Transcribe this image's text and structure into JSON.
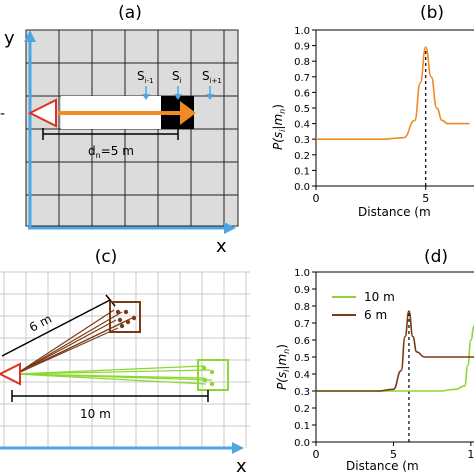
{
  "panels": {
    "a": {
      "label": "(a)",
      "axis_y": "y",
      "axis_x": "x",
      "cells": [
        "S",
        "S",
        "S"
      ],
      "cell_subs": [
        "i-1",
        "i",
        "i+1"
      ],
      "distance_label": "d",
      "distance_sub": "n",
      "distance_value": "=5  m",
      "side_mark": "-",
      "colors": {
        "grid_fill": "#dcdcdc",
        "axis": "#4da6e0",
        "arrow": "#f08a24",
        "start": "#e03020",
        "cell": "#000000"
      }
    },
    "b": {
      "label": "(b)",
      "xlabel": "Distance (m",
      "ylabel": {
        "p": "P(s",
        "i": "i",
        "sep": "|m",
        "n": "n",
        "close": ")"
      }
    },
    "c": {
      "label": "(c)",
      "axis_x": "x",
      "dist_6": "6  m",
      "dist_10": "10  m",
      "colors": {
        "brown": "#7a3a16",
        "green": "#8ad830",
        "start": "#e03020",
        "axis": "#4da6e0",
        "grid": "#c8c8c8"
      }
    },
    "d": {
      "label": "(d)",
      "xlabel": "Distance (m",
      "ylabel": {
        "p": "P(s",
        "i": "i",
        "sep": "|m",
        "n": "n",
        "close": ")"
      },
      "legend": [
        "10 m",
        "6 m"
      ]
    }
  },
  "chart_data": [
    {
      "type": "line",
      "panel": "b",
      "x": [
        0,
        1,
        2,
        3,
        4,
        4.5,
        4.75,
        5,
        5.25,
        5.5,
        5.75,
        6,
        6.5,
        7
      ],
      "series": [
        {
          "values": [
            0.3,
            0.3,
            0.3,
            0.3,
            0.31,
            0.42,
            0.66,
            0.89,
            0.7,
            0.5,
            0.42,
            0.4,
            0.4,
            0.4
          ],
          "color": "#f08a24"
        }
      ],
      "ylim": [
        0,
        1.0
      ],
      "yticks": [
        "0.0",
        "0.1",
        "0.2",
        "0.3",
        "0.4",
        "0.5",
        "0.6",
        "0.7",
        "0.8",
        "0.9",
        "1.0"
      ],
      "xticks": [
        "0",
        "5"
      ],
      "xlim": [
        0,
        7.2
      ],
      "vline": 5,
      "grid": false
    },
    {
      "type": "line",
      "panel": "d",
      "x": [
        0,
        2,
        4,
        5,
        5.5,
        5.75,
        6,
        6.25,
        6.5,
        7,
        8,
        9,
        9.6,
        9.8,
        10,
        10.2
      ],
      "series": [
        {
          "name": "10 m",
          "values": [
            0.3,
            0.3,
            0.3,
            0.3,
            0.3,
            0.3,
            0.3,
            0.3,
            0.3,
            0.3,
            0.3,
            0.31,
            0.33,
            0.45,
            0.6,
            0.68
          ],
          "color": "#8ad830"
        },
        {
          "name": "6 m",
          "values": [
            0.3,
            0.3,
            0.3,
            0.31,
            0.42,
            0.62,
            0.77,
            0.62,
            0.53,
            0.5,
            0.5,
            0.5,
            0.5,
            0.5,
            0.5,
            0.5
          ],
          "color": "#7a3a16"
        }
      ],
      "ylim": [
        0,
        1.0
      ],
      "yticks": [
        "0.0",
        "0.1",
        "0.2",
        "0.3",
        "0.4",
        "0.5",
        "0.6",
        "0.7",
        "0.8",
        "0.9",
        "1.0"
      ],
      "xticks": [
        "0",
        "5",
        "1"
      ],
      "xlim": [
        0,
        10.2
      ],
      "vline": 6,
      "legend": "top-left",
      "grid": false
    }
  ]
}
